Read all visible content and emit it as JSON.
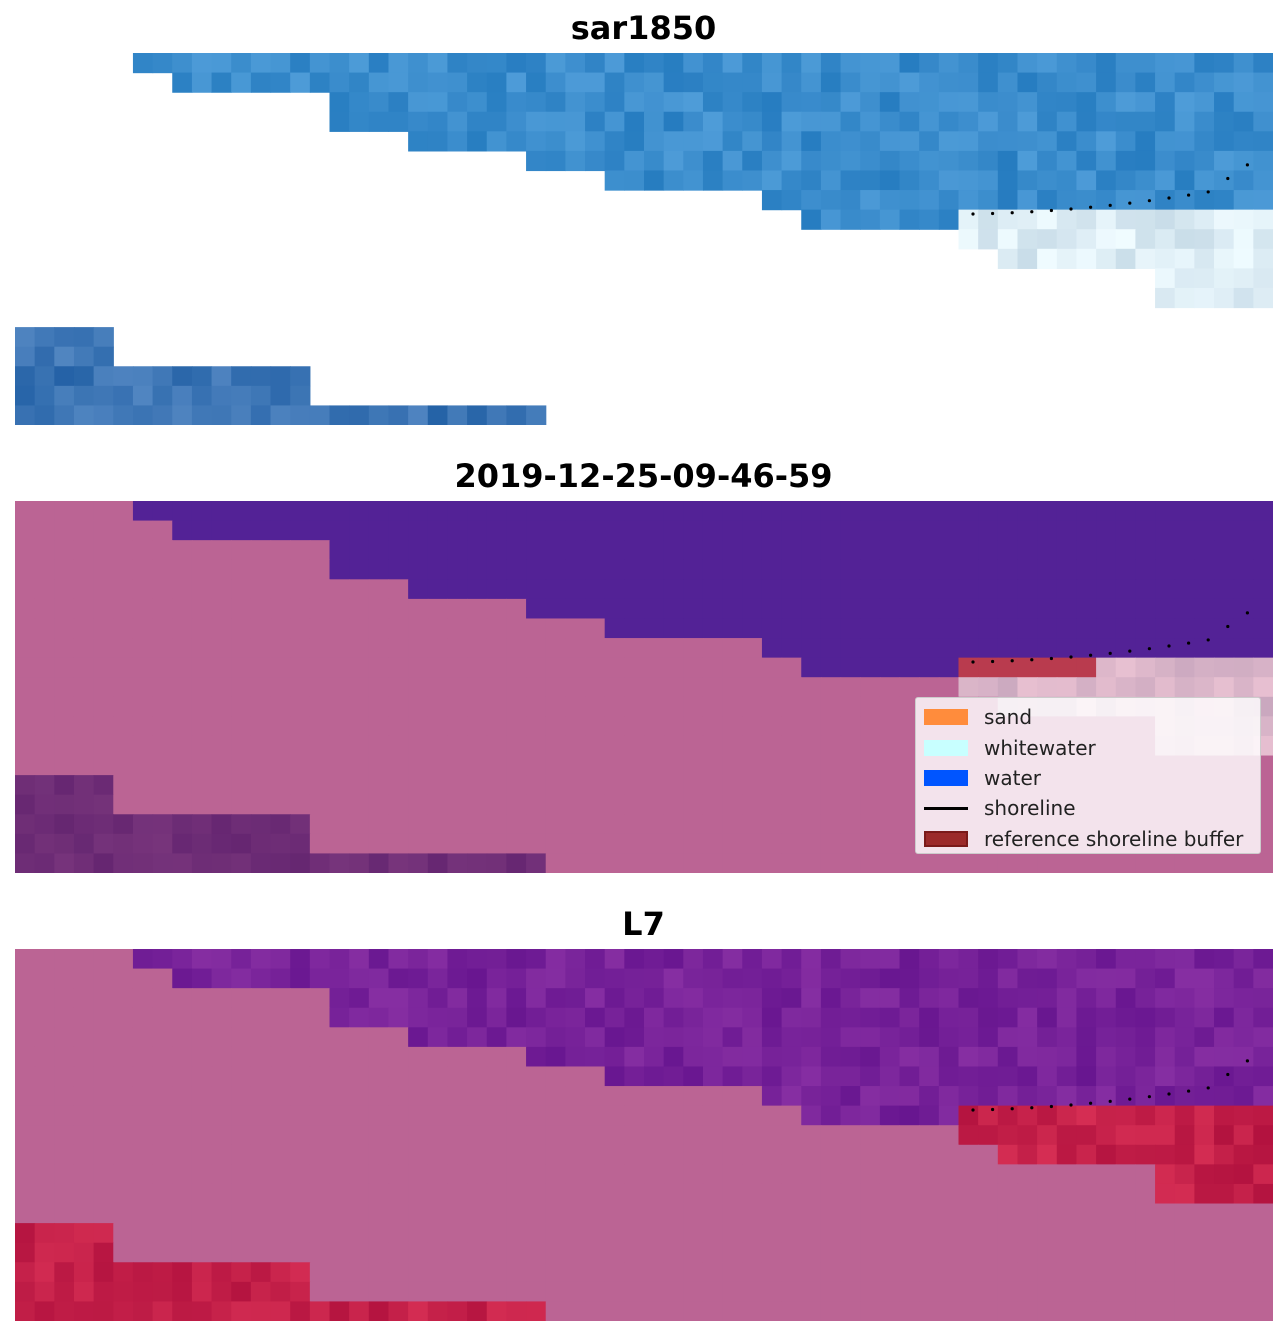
{
  "panels": [
    {
      "id": "p1",
      "title": "sar1850"
    },
    {
      "id": "p2",
      "title": "2019-12-25-09-46-59"
    },
    {
      "id": "p3",
      "title": "L7"
    }
  ],
  "legend": {
    "items": [
      {
        "label": "sand",
        "kind": "patch",
        "color": "#ff8c3c",
        "edge": "#ff8c3c"
      },
      {
        "label": "whitewater",
        "kind": "patch",
        "color": "#c8ffff",
        "edge": "#c8ffff"
      },
      {
        "label": "water",
        "kind": "patch",
        "color": "#0055ff",
        "edge": "#0055ff"
      },
      {
        "label": "shoreline",
        "kind": "line",
        "color": "#000000"
      },
      {
        "label": "reference shoreline buffer",
        "kind": "patch",
        "color": "#9b2a2a",
        "edge": "#7a1a1a"
      }
    ]
  },
  "colors": {
    "background": "#ffffff",
    "mask": "#bb6494",
    "sar_water": "#3a8ccc",
    "sar_whitewater": "#dcecf4",
    "classified_water": "#532296",
    "buffer": "#b93b4e",
    "l7_water": "#772299",
    "l7_sand": "#c42049",
    "shoreline_points": "#000000"
  }
}
